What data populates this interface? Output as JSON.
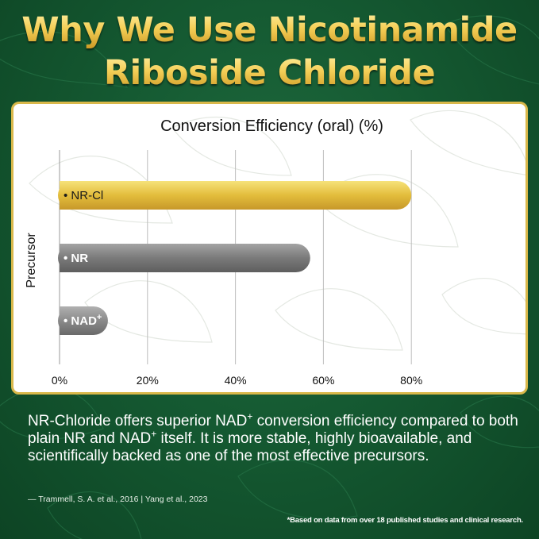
{
  "header": {
    "line1": "Why We Use Nicotinamide",
    "line2": "Riboside Chloride"
  },
  "chart_data": {
    "type": "bar",
    "orientation": "horizontal",
    "title": "Conversion Efficiency (oral) (%)",
    "xlabel": "",
    "ylabel": "Precursor",
    "xlim": [
      0,
      100
    ],
    "x_ticks": [
      "0%",
      "20%",
      "40%",
      "60%",
      "80%"
    ],
    "x_tick_values": [
      0,
      20,
      40,
      60,
      80
    ],
    "grid": "vertical",
    "categories": [
      {
        "name": "NR-Cl",
        "prefix": "• NR-Cl",
        "sup": ""
      },
      {
        "name": "NR",
        "prefix": "• NR",
        "sup": ""
      },
      {
        "name": "NAD",
        "prefix": "• NAD",
        "sup": "+"
      }
    ],
    "values": [
      80,
      57,
      11
    ],
    "colors": [
      "#e3bd3c",
      "#7a7a7a",
      "#8a8a8a"
    ]
  },
  "description": {
    "p1": "NR-Chloride offers superior NAD",
    "sup": "+",
    "p2": " conversion efficiency compared to both plain NR and NAD",
    "p3": " itself. It is more stable, highly bioavailable, and scientifically backed as one of the most effective precursors."
  },
  "citation": "—  Trammell, S. A. et al., 2016 | Yang et al., 2023",
  "footnote": "*Based on data from over 18 published studies and clinical research."
}
